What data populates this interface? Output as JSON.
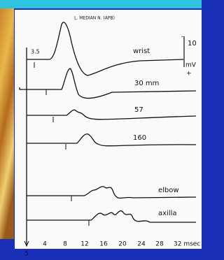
{
  "header": {
    "title": "L. MEDIAN N. (APB)"
  },
  "scale": {
    "start_label": "3.5",
    "amplitude": "10",
    "unit": "mV",
    "minus": "-",
    "plus": "+"
  },
  "traces": [
    {
      "label": "wrist"
    },
    {
      "label": "30 mm"
    },
    {
      "label": "57"
    },
    {
      "label": "160"
    },
    {
      "label": "elbow"
    },
    {
      "label": "axilla"
    }
  ],
  "x_axis": {
    "ticks": [
      "4",
      "8",
      "12",
      "16",
      "20",
      "24",
      "28",
      "32 msec"
    ],
    "origin": "5"
  }
}
